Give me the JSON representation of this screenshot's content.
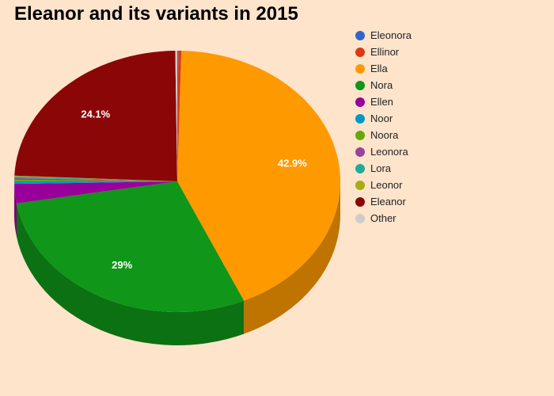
{
  "chart_data": {
    "type": "pie",
    "title": "Eleanor and its variants in 2015",
    "is_3d": true,
    "legend_position": "right",
    "slices": [
      {
        "name": "Eleonora",
        "value": 0.1,
        "color": "#3366CC"
      },
      {
        "name": "Ellinor",
        "value": 0.3,
        "color": "#DC3912"
      },
      {
        "name": "Ella",
        "value": 42.9,
        "color": "#FF9900",
        "label": "42.9%"
      },
      {
        "name": "Nora",
        "value": 29,
        "color": "#109618",
        "label": "29%"
      },
      {
        "name": "Ellen",
        "value": 2.4,
        "color": "#990099"
      },
      {
        "name": "Noor",
        "value": 0.3,
        "color": "#0099C6"
      },
      {
        "name": "Noora",
        "value": 0.2,
        "color": "#66AA00"
      },
      {
        "name": "Leonora",
        "value": 0.2,
        "color": "#994499"
      },
      {
        "name": "Lora",
        "value": 0.2,
        "color": "#22AA99"
      },
      {
        "name": "Leonor",
        "value": 0.1,
        "color": "#AAAA11"
      },
      {
        "name": "Eleanor",
        "value": 24.1,
        "color": "#8B0707",
        "label": "24.1%"
      },
      {
        "name": "Other",
        "value": 0.2,
        "color": "#CCCCCC"
      }
    ]
  }
}
